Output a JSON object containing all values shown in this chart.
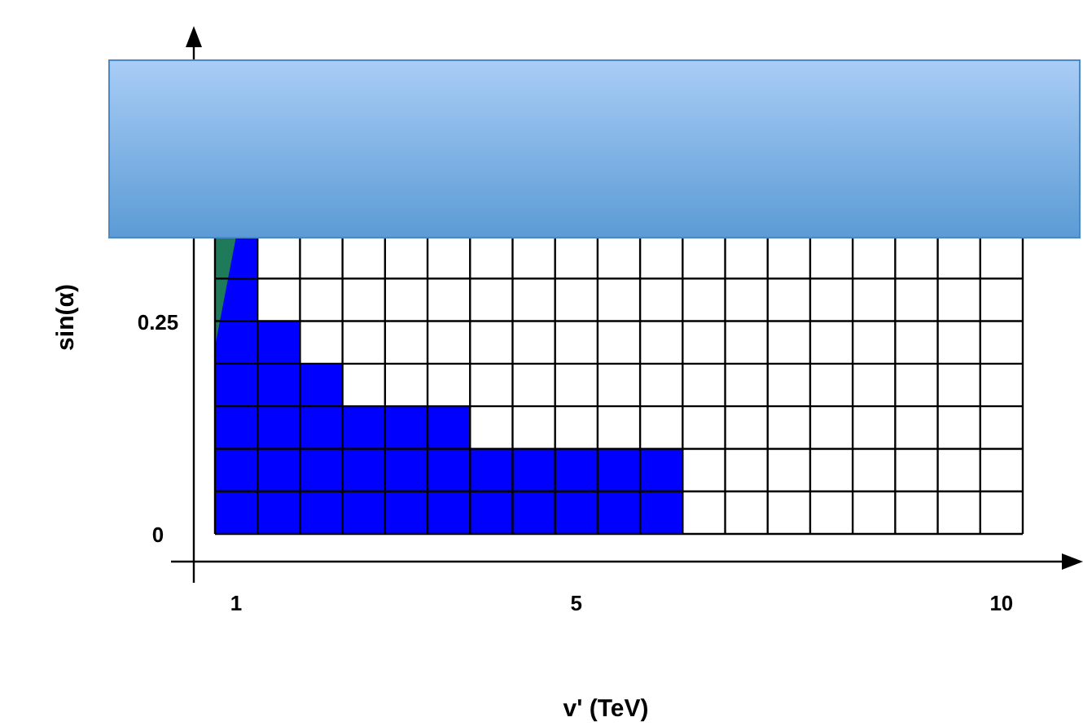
{
  "chart_data": {
    "type": "bar",
    "xlabel": "v' (TeV)",
    "ylabel": "sin(α)",
    "x": [
      1,
      1.5,
      2,
      2.5,
      3,
      3.5,
      4,
      4.5,
      5,
      5.5,
      6,
      6.5,
      7,
      7.5,
      8,
      8.5,
      9,
      9.5,
      10
    ],
    "values": [
      0.35,
      0.25,
      0.2,
      0.15,
      0.15,
      0.15,
      0.1,
      0.1,
      0.1,
      0.1,
      0.1,
      0,
      0,
      0,
      0,
      0,
      0,
      0,
      0
    ],
    "color": "#0000ff",
    "xlim": [
      0.75,
      10.25
    ],
    "ylim": [
      0,
      0.35
    ],
    "xticks": [
      1,
      5,
      10
    ],
    "yticks": [
      0,
      0.25
    ],
    "grid": true
  }
}
